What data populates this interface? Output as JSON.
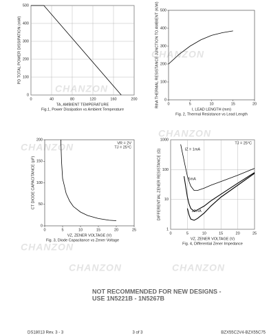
{
  "chart_data": [
    {
      "type": "line",
      "ylabel": "PD  TOTAL POWER DISSIPATION (mW)",
      "xlabel": "TA, AMBIENT TEMPERATURE",
      "caption": "Fig.1,  Power Dissipation vs Ambient Temperature",
      "x": [
        0,
        25,
        175
      ],
      "values": [
        500,
        500,
        0
      ],
      "color": "#000000",
      "xlim": [
        0,
        200
      ],
      "xticks": [
        0,
        40,
        80,
        120,
        160,
        200
      ],
      "ylim": [
        0,
        500
      ],
      "yticks": [
        0,
        100,
        200,
        300,
        400,
        500
      ],
      "grid": true
    },
    {
      "type": "line",
      "ylabel": "RthA THERMAL RESISTANCE JUNCTION TO AMBIENT (K/W)",
      "xlabel": "l, LEAD LENGTH (mm)",
      "caption": "Fig. 2,  Thermal Resistance vs Lead Length",
      "x": [
        0,
        2.5,
        5,
        7.5,
        10,
        12.5,
        15
      ],
      "values": [
        200,
        255,
        300,
        335,
        360,
        375,
        385
      ],
      "color": "#000000",
      "xlim": [
        0,
        20
      ],
      "xticks": [
        0,
        5,
        10,
        15,
        20
      ],
      "ylim": [
        0,
        500
      ],
      "yticks": [
        0,
        100,
        200,
        300,
        400,
        500
      ],
      "grid": false
    },
    {
      "type": "line",
      "ylabel": "CT  DIODE CAPACITANCE (pF)",
      "xlabel": "VZ, ZENER VOLTAGE (V)",
      "caption": "Fig. 3,  Diode Capacitance vs Zener Voltage",
      "annotations": [
        "VR = 2V",
        "TJ = 25°C"
      ],
      "x": [
        4.5,
        4.7,
        5,
        6,
        7,
        8,
        10,
        12,
        15,
        18,
        20
      ],
      "values": [
        200,
        150,
        110,
        75,
        57,
        45,
        32,
        24,
        17,
        13,
        12
      ],
      "color": "#000000",
      "xlim": [
        0,
        25
      ],
      "xticks": [
        0,
        5,
        10,
        15,
        20,
        25
      ],
      "ylim": [
        0,
        200
      ],
      "yticks": [
        0,
        50,
        100,
        150,
        200
      ],
      "grid": false
    },
    {
      "type": "line",
      "ylabel": "DIFFERENTIAL ZENER RESISTANCE (Ω)",
      "xlabel": "VZ, ZENER VOLTAGE (V)",
      "caption": "Fig. 4,  Differential Zener Impedance",
      "annotations": [
        "TJ = 25°C"
      ],
      "log_y": true,
      "x": [
        3,
        4,
        5,
        5.5,
        6,
        7,
        8,
        10,
        12,
        15,
        20,
        25
      ],
      "series": [
        {
          "name": "IZ = 1mA",
          "color": "#000000",
          "values": [
            700,
            200,
            60,
            40,
            28,
            20,
            20,
            24,
            30,
            40,
            65,
            110
          ]
        },
        {
          "name": "5mA",
          "color": "#000000",
          "values": [
            null,
            60,
            12,
            7,
            5,
            4,
            4.5,
            6,
            9,
            15,
            35,
            80
          ]
        },
        {
          "name": "10mA",
          "color": "#000000",
          "values": [
            null,
            null,
            5,
            3,
            2.2,
            2,
            2.3,
            3.5,
            6,
            12,
            30,
            75
          ]
        }
      ],
      "xlim": [
        0,
        25
      ],
      "xticks": [
        0,
        5,
        10,
        15,
        20,
        25
      ],
      "ylim": [
        1,
        1000
      ],
      "yticks": [
        1,
        10,
        100,
        1000
      ],
      "grid": true
    }
  ],
  "watermark": "CHANZON",
  "notice": [
    "NOT RECOMMENDED FOR NEW DESIGNS -",
    "USE 1N5221B - 1N5267B"
  ],
  "footer": {
    "left": "DS18013 Rev. 3 - 3",
    "center": "3 of 3",
    "right": "BZX55C2V4-BZX55C75"
  }
}
